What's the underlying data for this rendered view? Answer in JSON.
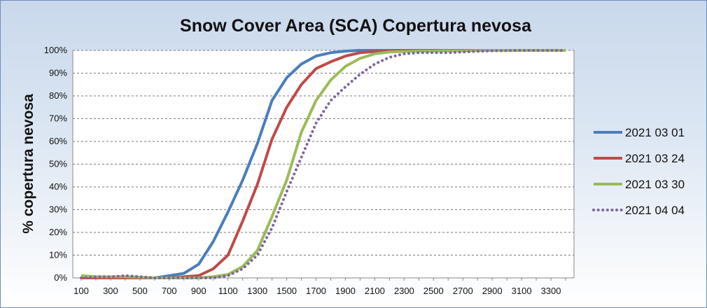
{
  "chart_data": {
    "type": "line",
    "title": "Snow Cover Area (SCA) Copertura nevosa",
    "xlabel": "",
    "ylabel": "% copertura nevosa",
    "x": [
      100,
      200,
      300,
      400,
      500,
      600,
      700,
      800,
      900,
      1000,
      1100,
      1200,
      1300,
      1400,
      1500,
      1600,
      1700,
      1800,
      1900,
      2000,
      2100,
      2200,
      2300,
      2400,
      2500,
      2600,
      2700,
      2800,
      2900,
      3000,
      3100,
      3200,
      3300,
      3400
    ],
    "xticks": [
      100,
      300,
      500,
      700,
      900,
      1100,
      1300,
      1500,
      1700,
      1900,
      2100,
      2300,
      2500,
      2700,
      2900,
      3100,
      3300
    ],
    "yticks": [
      0,
      10,
      20,
      30,
      40,
      50,
      60,
      70,
      80,
      90,
      100
    ],
    "ylim": [
      0,
      100
    ],
    "ytick_suffix": "%",
    "grid": true,
    "legend_position": "right",
    "series": [
      {
        "name": "2021 03 01",
        "color": "#4a7ebb",
        "dash": false,
        "values": [
          0,
          0,
          0,
          0.5,
          0,
          0,
          1,
          2,
          6,
          16,
          29,
          43,
          59,
          78,
          88,
          94,
          97.5,
          99,
          99.7,
          100,
          100,
          100,
          100,
          100,
          100,
          100,
          100,
          100,
          100,
          100,
          100,
          100,
          100,
          100
        ]
      },
      {
        "name": "2021 03 24",
        "color": "#be4b48",
        "dash": false,
        "values": [
          0,
          0,
          0,
          0,
          0,
          0,
          0,
          0.5,
          1,
          4,
          10,
          25,
          41,
          61,
          75,
          85,
          92,
          95,
          97.5,
          99,
          99.5,
          99.8,
          100,
          100,
          100,
          100,
          100,
          100,
          100,
          100,
          100,
          100,
          100,
          100
        ]
      },
      {
        "name": "2021 03 30",
        "color": "#9bbb59",
        "dash": false,
        "values": [
          1,
          0.5,
          0.5,
          0.5,
          0.3,
          0,
          0,
          0,
          0,
          0.5,
          1.5,
          5,
          12,
          27,
          43,
          64,
          78,
          87,
          93,
          96.5,
          98.5,
          99.3,
          99.5,
          99.7,
          99.7,
          99.8,
          99.8,
          99.9,
          100,
          100,
          100,
          100,
          100,
          100
        ]
      },
      {
        "name": "2021 04 04",
        "color": "#8064a2",
        "dash": true,
        "values": [
          0,
          0.5,
          0.5,
          1,
          0.5,
          0,
          0,
          0,
          0,
          0,
          1,
          4,
          10,
          22,
          38,
          53,
          68,
          78,
          84,
          89.5,
          94,
          97,
          98.5,
          99,
          99,
          99,
          99.3,
          99.6,
          99.8,
          99.9,
          100,
          100,
          100,
          100
        ]
      }
    ]
  }
}
